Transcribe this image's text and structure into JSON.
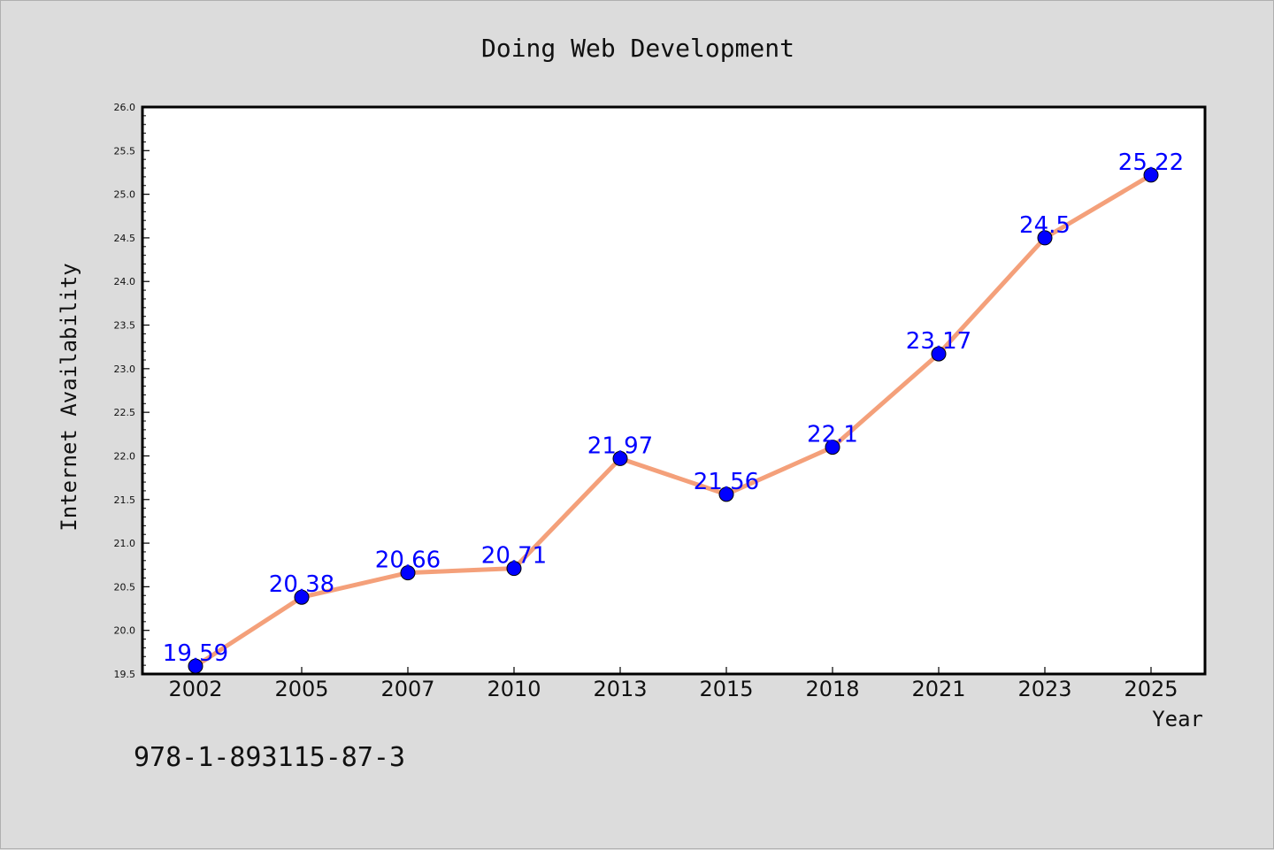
{
  "chart_data": {
    "type": "line",
    "title": "Doing Web Development",
    "xlabel": "Year",
    "ylabel": "Internet Availability",
    "categories": [
      "2002",
      "2005",
      "2007",
      "2010",
      "2013",
      "2015",
      "2018",
      "2021",
      "2023",
      "2025"
    ],
    "series": [
      {
        "values": [
          19.59,
          20.38,
          20.66,
          20.71,
          21.97,
          21.56,
          22.1,
          23.17,
          24.5,
          25.22
        ],
        "labels": [
          "19.59",
          "20.38",
          "20.66",
          "20.71",
          "21.97",
          "21.56",
          "22.1",
          "23.17",
          "24.5",
          "25.22"
        ],
        "line_color": "#f4a07a",
        "marker_color": "#0000ff"
      }
    ],
    "ylim": [
      19.5,
      26.0
    ],
    "yticks": [
      "19.5",
      "20.0",
      "20.5",
      "21.0",
      "21.5",
      "22.0",
      "22.5",
      "23.0",
      "23.5",
      "24.0",
      "24.5",
      "25.0",
      "25.5",
      "26.0"
    ],
    "grid": false,
    "legend": "none"
  },
  "footer": {
    "isbn": "978-1-893115-87-3"
  }
}
